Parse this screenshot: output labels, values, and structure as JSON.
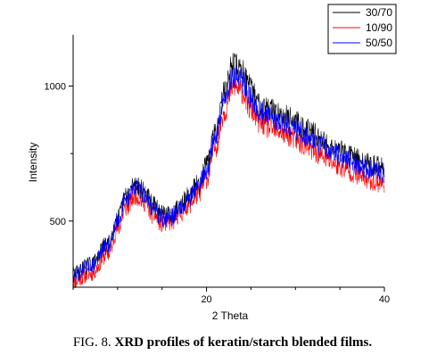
{
  "caption": {
    "label": "FIG. 8.",
    "text": "XRD profiles of keratin/starch blended films."
  },
  "chart_data": {
    "type": "line",
    "title": "",
    "xlabel": "2 Theta",
    "ylabel": "Intensity",
    "xlim": [
      5,
      40
    ],
    "ylim": [
      255,
      1190
    ],
    "x_ticks": [
      20,
      40
    ],
    "y_ticks": [
      500,
      1000
    ],
    "grid": false,
    "legend_position": "top-right",
    "x": [
      5,
      7,
      9,
      10,
      11,
      12,
      13,
      14,
      15,
      16,
      17,
      18,
      19,
      20,
      21,
      22,
      23,
      24,
      25,
      26,
      27,
      28,
      29,
      30,
      31,
      32,
      33,
      34,
      35,
      36,
      37,
      38,
      39,
      40
    ],
    "series": [
      {
        "name": "30/70",
        "color": "#000000",
        "values": [
          305,
          340,
          420,
          510,
          595,
          640,
          610,
          560,
          525,
          525,
          560,
          595,
          635,
          705,
          830,
          975,
          1085,
          1060,
          990,
          935,
          915,
          905,
          890,
          870,
          845,
          825,
          800,
          780,
          760,
          745,
          730,
          715,
          705,
          700
        ]
      },
      {
        "name": "10/90",
        "color": "#ff0000",
        "values": [
          275,
          305,
          380,
          470,
          550,
          595,
          570,
          520,
          490,
          495,
          525,
          560,
          595,
          655,
          775,
          905,
          1000,
          980,
          910,
          865,
          845,
          835,
          820,
          800,
          780,
          760,
          740,
          720,
          700,
          685,
          670,
          655,
          645,
          640
        ]
      },
      {
        "name": "50/50",
        "color": "#0000ff",
        "values": [
          300,
          335,
          410,
          505,
          585,
          625,
          600,
          550,
          510,
          515,
          550,
          585,
          625,
          690,
          810,
          950,
          1040,
          1020,
          955,
          905,
          885,
          875,
          860,
          840,
          820,
          800,
          780,
          760,
          740,
          725,
          710,
          695,
          685,
          680
        ]
      }
    ]
  }
}
